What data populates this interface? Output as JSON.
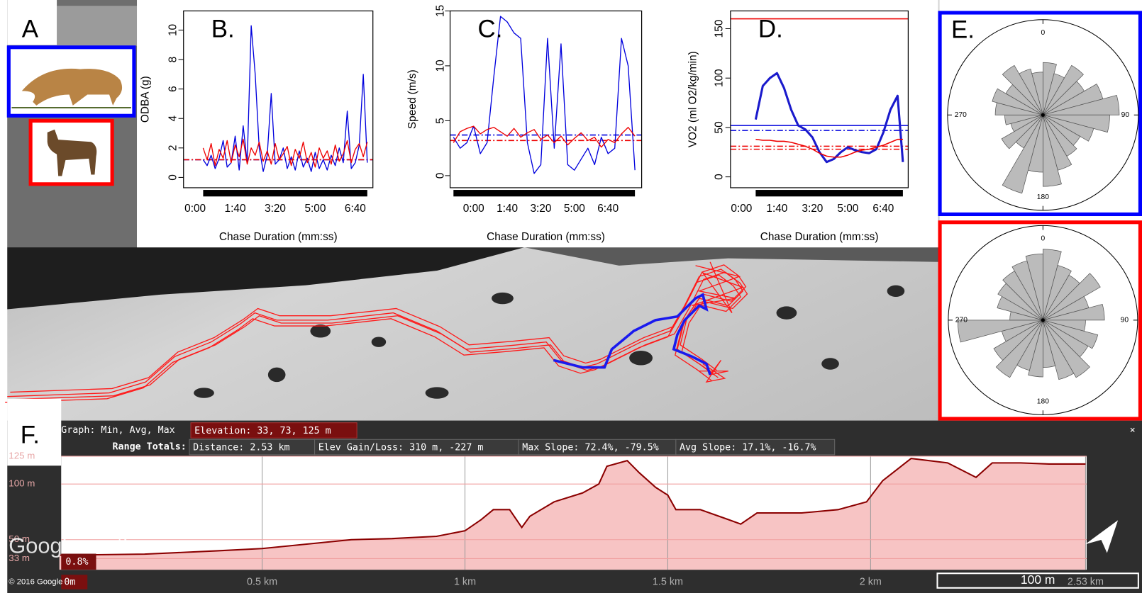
{
  "panel_a_label": "A",
  "map": {
    "logo": "Google earth",
    "copyright": "© 2016 Google",
    "scale": "100 m"
  },
  "elevation_panel": {
    "label": "F.",
    "graph_label": "Graph: Min, Avg, Max",
    "elevation": "Elevation: 33, 73, 125 m",
    "range_label": "Range Totals:",
    "distance": "Distance: 2.53 km",
    "gain_loss": "Elev Gain/Loss: 310 m, -227 m",
    "max_slope": "Max Slope: 72.4%, -79.5%",
    "avg_slope": "Avg Slope: 17.1%, -16.7%",
    "slope_box": "0.8%",
    "zero_box": "0m",
    "close": "×"
  },
  "chart_data": [
    {
      "type": "line",
      "panel_label": "B.",
      "ylabel": "ODBA (g)",
      "xlabel": "Chase Duration (mm:ss)",
      "x": [
        20,
        30,
        40,
        50,
        60,
        70,
        80,
        90,
        100,
        110,
        120,
        130,
        140,
        150,
        160,
        170,
        180,
        190,
        200,
        210,
        220,
        230,
        240,
        250,
        260,
        270,
        280,
        290,
        300,
        310,
        320,
        330,
        340,
        350,
        360,
        370,
        380,
        390,
        400,
        410,
        420,
        430
      ],
      "xlim": [
        -29,
        444
      ],
      "xticks": [
        {
          "value": 0,
          "label": "0:00"
        },
        {
          "value": 100,
          "label": "1:40"
        },
        {
          "value": 200,
          "label": "3:20"
        },
        {
          "value": 300,
          "label": "5:00"
        },
        {
          "value": 400,
          "label": "6:40"
        }
      ],
      "ylim": [
        -0.7,
        11.3
      ],
      "yticks": [
        0,
        2,
        4,
        6,
        8,
        10
      ],
      "series": [
        {
          "color": "#0000dd",
          "values": [
            1.2,
            0.8,
            1.5,
            0.6,
            1.3,
            2.5,
            0.7,
            1.0,
            2.8,
            0.5,
            3.5,
            1.0,
            10.3,
            7.0,
            2.0,
            0.4,
            1.5,
            5.7,
            0.9,
            1.2,
            2.0,
            0.6,
            1.4,
            0.5,
            1.8,
            0.7,
            1.3,
            0.4,
            1.7,
            0.6,
            1.2,
            0.5,
            1.5,
            0.8,
            2.0,
            1.0,
            4.5,
            0.6,
            1.0,
            2.2,
            7.0,
            1.0
          ]
        },
        {
          "color": "#ee0000",
          "values": [
            2.0,
            1.2,
            2.3,
            0.8,
            1.9,
            1.3,
            2.5,
            1.0,
            2.2,
            1.4,
            2.6,
            0.9,
            2.0,
            1.5,
            2.4,
            1.1,
            1.8,
            0.9,
            2.3,
            1.2,
            1.6,
            2.1,
            0.8,
            1.9,
            1.3,
            2.4,
            1.0,
            1.7,
            0.7,
            2.0,
            1.3,
            1.8,
            0.9,
            2.2,
            1.1,
            1.6,
            2.5,
            1.0,
            1.9,
            2.3,
            1.4,
            2.4
          ]
        }
      ],
      "reference_lines": [
        {
          "value": 1.2,
          "color": "#0000dd",
          "style": "dashed"
        },
        {
          "value": 1.2,
          "color": "#ee0000",
          "style": "dashed"
        }
      ]
    },
    {
      "type": "line",
      "panel_label": "C.",
      "ylabel": "Speed (m/s)",
      "xlabel": "Chase Duration (mm:ss)",
      "x": [
        -60,
        -40,
        -20,
        0,
        20,
        40,
        60,
        80,
        100,
        120,
        140,
        160,
        180,
        200,
        220,
        240,
        260,
        280,
        300,
        320,
        340,
        360,
        380,
        400,
        420,
        440,
        460,
        480
      ],
      "xlim": [
        -70,
        500
      ],
      "xticks": [
        {
          "value": 0,
          "label": "0:00"
        },
        {
          "value": 100,
          "label": "1:40"
        },
        {
          "value": 200,
          "label": "3:20"
        },
        {
          "value": 300,
          "label": "5:00"
        },
        {
          "value": 400,
          "label": "6:40"
        }
      ],
      "ylim": [
        -1.1,
        15
      ],
      "yticks": [
        0,
        5,
        10,
        15
      ],
      "series": [
        {
          "color": "#0000dd",
          "values": [
            3.5,
            2.5,
            3.0,
            4.5,
            2.0,
            3.0,
            9.0,
            14.5,
            14.0,
            13.0,
            12.5,
            3.0,
            0.2,
            1.0,
            12.5,
            2.5,
            12.0,
            1.0,
            0.5,
            1.5,
            2.5,
            1.0,
            3.5,
            2.0,
            2.5,
            12.5,
            10.0,
            0.5
          ]
        },
        {
          "color": "#ee0000",
          "values": [
            3.0,
            4.0,
            4.3,
            4.5,
            3.8,
            4.2,
            4.4,
            4.0,
            3.6,
            4.3,
            3.5,
            3.9,
            4.2,
            3.3,
            3.7,
            3.0,
            3.6,
            2.8,
            3.4,
            3.9,
            3.2,
            3.5,
            2.6,
            3.3,
            3.0,
            3.8,
            4.4,
            3.6
          ]
        }
      ],
      "reference_lines": [
        {
          "value": 3.7,
          "color": "#0000dd",
          "style": "dashed"
        },
        {
          "value": 3.2,
          "color": "#ee0000",
          "style": "dashed"
        }
      ]
    },
    {
      "type": "line",
      "panel_label": "D.",
      "ylabel": "VO2 (ml O2/kg/min)",
      "xlabel": "Chase Duration (mm:ss)",
      "x": [
        40,
        60,
        80,
        100,
        120,
        140,
        160,
        180,
        200,
        220,
        240,
        260,
        280,
        300,
        320,
        340,
        360,
        380,
        400,
        420,
        440,
        455
      ],
      "xlim": [
        -31,
        470
      ],
      "xticks": [
        {
          "value": 0,
          "label": "0:00"
        },
        {
          "value": 100,
          "label": "1:40"
        },
        {
          "value": 200,
          "label": "3:20"
        },
        {
          "value": 300,
          "label": "5:00"
        },
        {
          "value": 400,
          "label": "6:40"
        }
      ],
      "ylim": [
        -11,
        168
      ],
      "yticks": [
        0,
        50,
        100,
        150
      ],
      "series": [
        {
          "color": "#1a1acc",
          "width": 3,
          "values": [
            58,
            92,
            100,
            105,
            90,
            68,
            52,
            48,
            40,
            25,
            15,
            18,
            25,
            30,
            27,
            25,
            24,
            28,
            45,
            68,
            82,
            15
          ]
        },
        {
          "color": "#ee0000",
          "width": 1.5,
          "values": [
            38,
            37,
            37,
            36,
            36,
            35,
            33,
            31,
            28,
            24,
            21,
            20,
            20,
            22,
            25,
            27,
            28,
            30,
            32,
            35,
            38,
            38
          ]
        }
      ],
      "reference_lines": [
        {
          "value": 160,
          "color": "#ee0000",
          "style": "solid"
        },
        {
          "value": 52,
          "color": "#0000dd",
          "style": "solid"
        },
        {
          "value": 47,
          "color": "#0000dd",
          "style": "dashed"
        },
        {
          "value": 31,
          "color": "#ee0000",
          "style": "dashed"
        },
        {
          "value": 28,
          "color": "#ee0000",
          "style": "dashed"
        }
      ]
    },
    {
      "type": "rose",
      "panel_label": "E.",
      "border": "#0000ff",
      "color": "#bbbbbb",
      "rlim": [
        0,
        1
      ],
      "angle_ticks": [
        0,
        90,
        180,
        270
      ],
      "values": [
        0.55,
        0.45,
        0.6,
        0.5,
        0.65,
        0.8,
        0.7,
        0.55,
        0.45,
        0.5,
        0.6,
        0.75,
        0.6,
        0.85,
        0.4,
        0.5,
        0.35,
        0.4,
        0.5,
        0.55,
        0.45,
        0.6,
        0.5,
        0.45
      ]
    },
    {
      "type": "rose",
      "border": "#ff0000",
      "color": "#bbbbbb",
      "rlim": [
        0,
        1
      ],
      "angle_ticks": [
        0,
        90,
        180,
        270
      ],
      "values": [
        0.75,
        0.6,
        0.55,
        0.7,
        0.5,
        0.65,
        0.45,
        0.6,
        0.55,
        0.7,
        0.65,
        0.5,
        0.6,
        0.55,
        0.7,
        0.6,
        0.45,
        0.9,
        0.35,
        0.5,
        0.55,
        0.6,
        0.65,
        0.7
      ]
    },
    {
      "type": "area",
      "color": "#8b0000",
      "fill": "#f7c4c4",
      "grid": true,
      "x": [
        0,
        0.21,
        0.39,
        0.5,
        0.61,
        0.72,
        0.82,
        0.93,
        1.0,
        1.04,
        1.07,
        1.11,
        1.14,
        1.16,
        1.22,
        1.29,
        1.33,
        1.35,
        1.4,
        1.43,
        1.47,
        1.5,
        1.52,
        1.58,
        1.65,
        1.68,
        1.72,
        1.83,
        1.92,
        1.99,
        2.03,
        2.1,
        2.19,
        2.26,
        2.3,
        2.37,
        2.44,
        2.53
      ],
      "values": [
        36,
        37,
        40,
        42,
        46,
        50,
        51,
        53,
        58,
        68,
        77,
        77,
        61,
        71,
        84,
        92,
        100,
        116,
        121,
        110,
        97,
        90,
        77,
        77,
        68,
        64,
        74,
        74,
        77,
        84,
        103,
        123,
        119,
        106,
        119,
        119,
        118,
        118
      ],
      "xlim": [
        0,
        2.53
      ],
      "ylim": [
        23,
        125
      ],
      "xticks": [
        {
          "value": 0.5,
          "label": "0.5 km"
        },
        {
          "value": 1,
          "label": "1 km"
        },
        {
          "value": 1.5,
          "label": "1.5 km"
        },
        {
          "value": 2,
          "label": "2 km"
        },
        {
          "value": 2.53,
          "label": "2.53 km"
        }
      ],
      "yticks": [
        {
          "value": 33,
          "label": "33 m"
        },
        {
          "value": 50,
          "label": "50 m"
        },
        {
          "value": 100,
          "label": "100 m"
        },
        {
          "value": 125,
          "label": "125 m"
        }
      ]
    }
  ]
}
